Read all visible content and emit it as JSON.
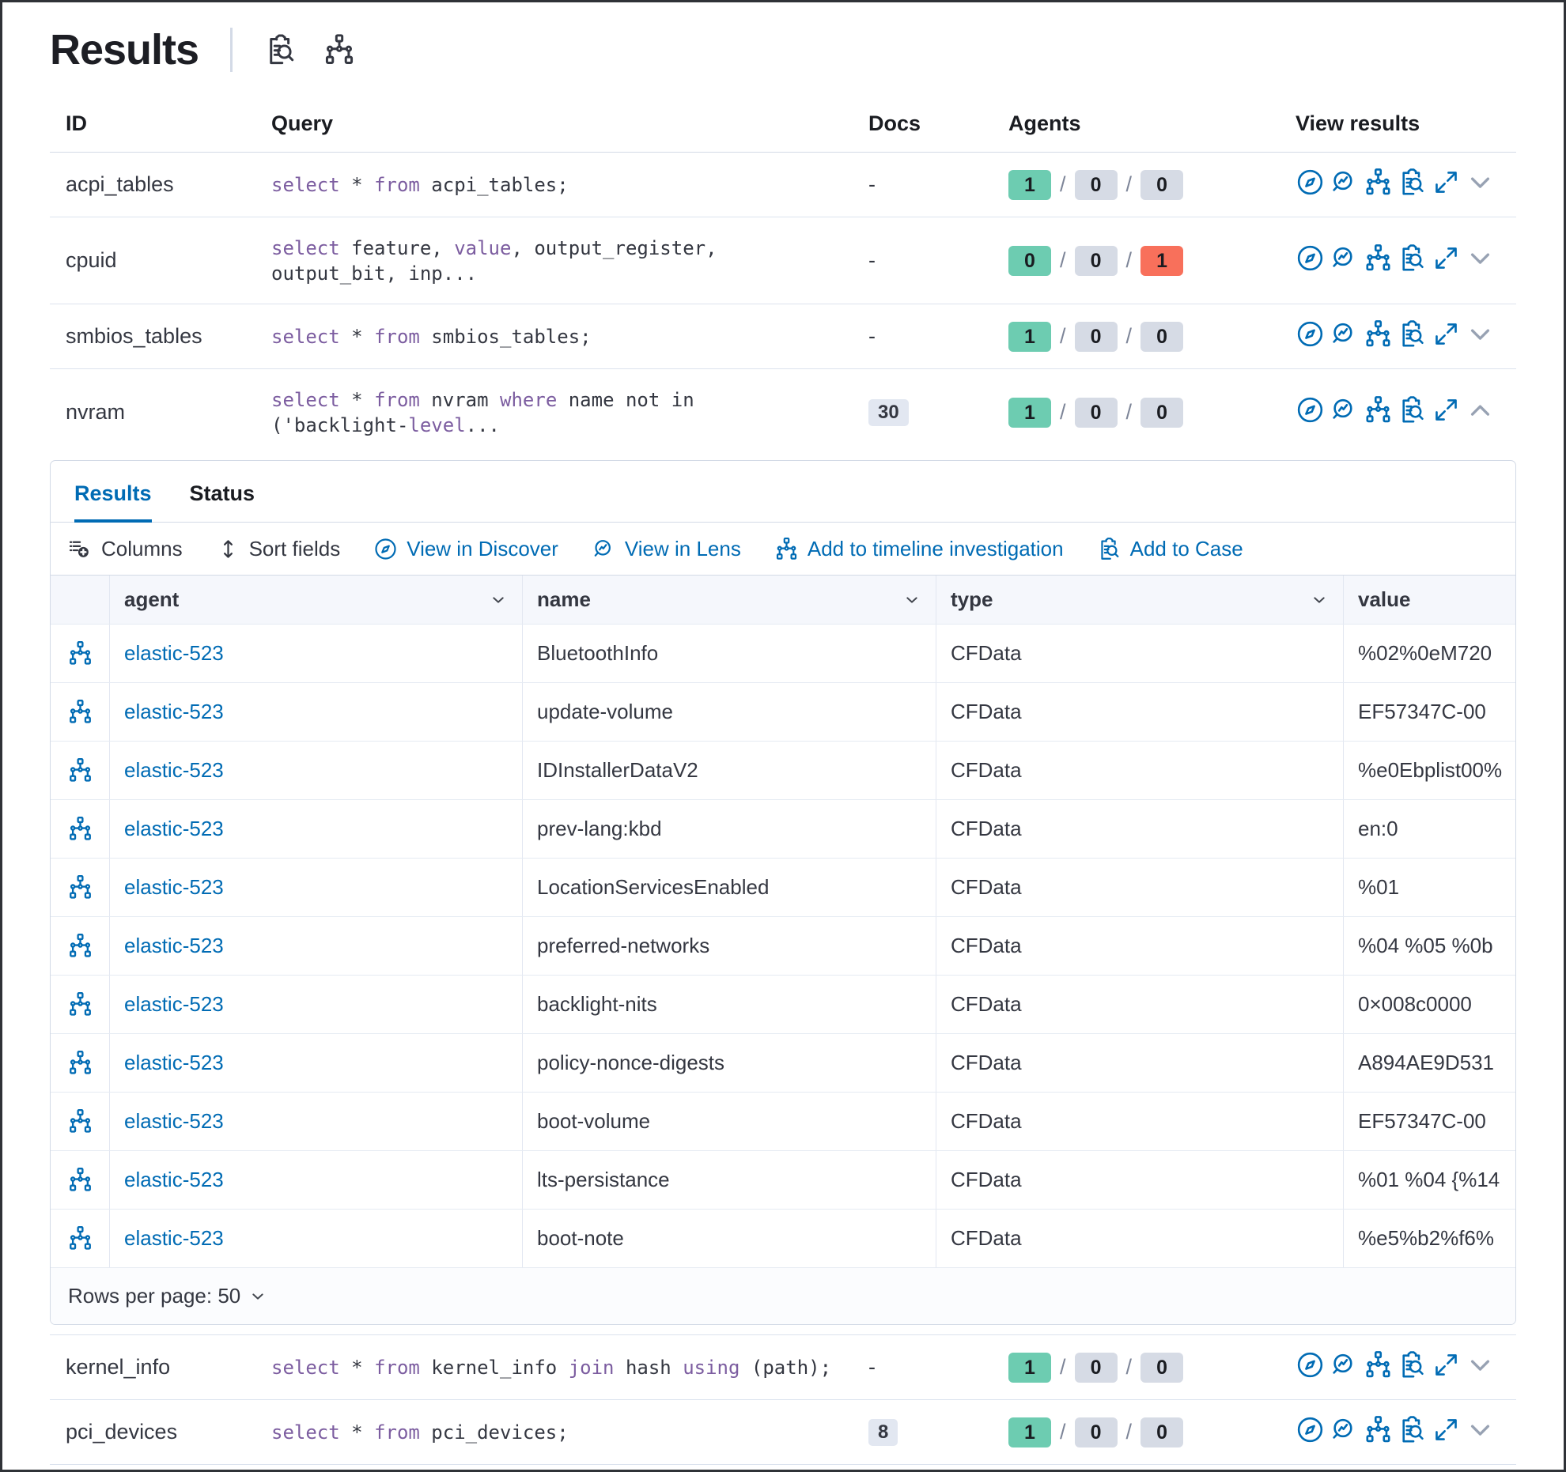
{
  "header": {
    "title": "Results",
    "icons": [
      {
        "name": "inspect-icon"
      },
      {
        "name": "saved-queries-icon"
      }
    ]
  },
  "colors": {
    "primary": "#006bb4",
    "keyword": "#7c5da0",
    "badge_success": "#6dccb1",
    "badge_neutral": "#d6dbe5",
    "badge_danger": "#f8705b"
  },
  "query_table": {
    "columns": [
      "ID",
      "Query",
      "Docs",
      "Agents",
      "View results"
    ],
    "rows": [
      {
        "id": "acpi_tables",
        "query_lines": [
          [
            {
              "t": "select",
              "k": true
            },
            {
              "t": " * ",
              "k": false
            },
            {
              "t": "from",
              "k": true
            },
            {
              "t": " acpi_tables;",
              "k": false
            }
          ]
        ],
        "docs": {
          "type": "dash",
          "text": "-"
        },
        "agents": [
          {
            "count": "1",
            "variant": "success"
          },
          {
            "count": "0",
            "variant": "neutral"
          },
          {
            "count": "0",
            "variant": "neutral"
          }
        ],
        "chevron": "down",
        "expanded": false
      },
      {
        "id": "cpuid",
        "query_lines": [
          [
            {
              "t": "select",
              "k": true
            },
            {
              "t": " feature, ",
              "k": false
            },
            {
              "t": "value",
              "k": true
            },
            {
              "t": ", output_register,",
              "k": false
            }
          ],
          [
            {
              "t": "output_bit, inp...",
              "k": false
            }
          ]
        ],
        "docs": {
          "type": "dash",
          "text": "-"
        },
        "agents": [
          {
            "count": "0",
            "variant": "success"
          },
          {
            "count": "0",
            "variant": "neutral"
          },
          {
            "count": "1",
            "variant": "danger"
          }
        ],
        "chevron": "down",
        "expanded": false
      },
      {
        "id": "smbios_tables",
        "query_lines": [
          [
            {
              "t": "select",
              "k": true
            },
            {
              "t": " * ",
              "k": false
            },
            {
              "t": "from",
              "k": true
            },
            {
              "t": " smbios_tables;",
              "k": false
            }
          ]
        ],
        "docs": {
          "type": "dash",
          "text": "-"
        },
        "agents": [
          {
            "count": "1",
            "variant": "success"
          },
          {
            "count": "0",
            "variant": "neutral"
          },
          {
            "count": "0",
            "variant": "neutral"
          }
        ],
        "chevron": "down",
        "expanded": false
      },
      {
        "id": "nvram",
        "query_lines": [
          [
            {
              "t": "select",
              "k": true
            },
            {
              "t": " * ",
              "k": false
            },
            {
              "t": "from",
              "k": true
            },
            {
              "t": " nvram ",
              "k": false
            },
            {
              "t": "where",
              "k": true
            },
            {
              "t": " name not in",
              "k": false
            }
          ],
          [
            {
              "t": "('backlight-",
              "k": false
            },
            {
              "t": "level",
              "k": true
            },
            {
              "t": "...",
              "k": false
            }
          ]
        ],
        "docs": {
          "type": "badge",
          "text": "30"
        },
        "agents": [
          {
            "count": "1",
            "variant": "success"
          },
          {
            "count": "0",
            "variant": "neutral"
          },
          {
            "count": "0",
            "variant": "neutral"
          }
        ],
        "chevron": "up",
        "expanded": true
      },
      {
        "id": "kernel_info",
        "query_lines": [
          [
            {
              "t": "select",
              "k": true
            },
            {
              "t": " * ",
              "k": false
            },
            {
              "t": "from",
              "k": true
            },
            {
              "t": " kernel_info ",
              "k": false
            },
            {
              "t": "join",
              "k": true
            },
            {
              "t": " hash ",
              "k": false
            },
            {
              "t": "using",
              "k": true
            },
            {
              "t": " (path);",
              "k": false
            }
          ]
        ],
        "docs": {
          "type": "dash",
          "text": "-"
        },
        "agents": [
          {
            "count": "1",
            "variant": "success"
          },
          {
            "count": "0",
            "variant": "neutral"
          },
          {
            "count": "0",
            "variant": "neutral"
          }
        ],
        "chevron": "down",
        "expanded": false
      },
      {
        "id": "pci_devices",
        "query_lines": [
          [
            {
              "t": "select",
              "k": true
            },
            {
              "t": " * ",
              "k": false
            },
            {
              "t": "from",
              "k": true
            },
            {
              "t": " pci_devices;",
              "k": false
            }
          ]
        ],
        "docs": {
          "type": "badge",
          "text": "8"
        },
        "agents": [
          {
            "count": "1",
            "variant": "success"
          },
          {
            "count": "0",
            "variant": "neutral"
          },
          {
            "count": "0",
            "variant": "neutral"
          }
        ],
        "chevron": "down",
        "expanded": false
      }
    ],
    "view_action_icons": [
      "discover",
      "lens",
      "timeline",
      "case",
      "expand"
    ]
  },
  "expanded_panel": {
    "tabs": [
      {
        "label": "Results",
        "active": true
      },
      {
        "label": "Status",
        "active": false
      }
    ],
    "toolbar": [
      {
        "label": "Columns",
        "icon": "columns",
        "kind": "control"
      },
      {
        "label": "Sort fields",
        "icon": "sort",
        "kind": "control"
      },
      {
        "label": "View in Discover",
        "icon": "discover",
        "kind": "link"
      },
      {
        "label": "View in Lens",
        "icon": "lens",
        "kind": "link"
      },
      {
        "label": "Add to timeline investigation",
        "icon": "timeline",
        "kind": "link"
      },
      {
        "label": "Add to Case",
        "icon": "case",
        "kind": "link"
      }
    ],
    "results_table": {
      "columns": [
        "agent",
        "name",
        "type",
        "value"
      ],
      "sortable_columns": [
        "agent",
        "name",
        "type"
      ],
      "rows": [
        {
          "agent": "elastic-523",
          "name": "BluetoothInfo",
          "type": "CFData",
          "value": "%02%0eM720"
        },
        {
          "agent": "elastic-523",
          "name": "update-volume",
          "type": "CFData",
          "value": "EF57347C-00"
        },
        {
          "agent": "elastic-523",
          "name": "IDInstallerDataV2",
          "type": "CFData",
          "value": "%e0Ebplist00%"
        },
        {
          "agent": "elastic-523",
          "name": "prev-lang:kbd",
          "type": "CFData",
          "value": "en:0"
        },
        {
          "agent": "elastic-523",
          "name": "LocationServicesEnabled",
          "type": "CFData",
          "value": "%01"
        },
        {
          "agent": "elastic-523",
          "name": "preferred-networks",
          "type": "CFData",
          "value": "%04 %05 %0b"
        },
        {
          "agent": "elastic-523",
          "name": "backlight-nits",
          "type": "CFData",
          "value": "0×008c0000"
        },
        {
          "agent": "elastic-523",
          "name": "policy-nonce-digests",
          "type": "CFData",
          "value": "A894AE9D531"
        },
        {
          "agent": "elastic-523",
          "name": "boot-volume",
          "type": "CFData",
          "value": "EF57347C-00"
        },
        {
          "agent": "elastic-523",
          "name": "lts-persistance",
          "type": "CFData",
          "value": "%01 %04 {%14"
        },
        {
          "agent": "elastic-523",
          "name": "boot-note",
          "type": "CFData",
          "value": "%e5%b2%f6%"
        }
      ]
    },
    "footer": {
      "rows_per_page": "Rows per page: 50"
    }
  }
}
